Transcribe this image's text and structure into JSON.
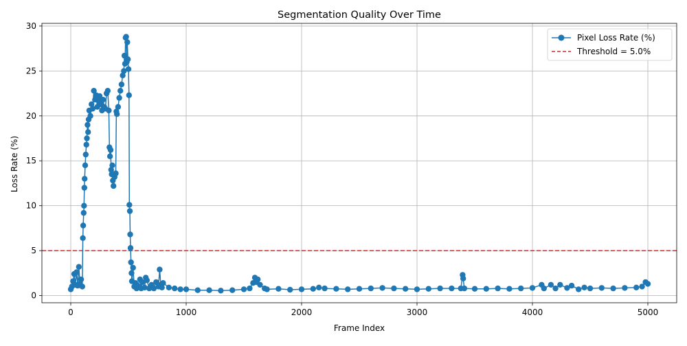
{
  "chart_data": {
    "type": "line",
    "title": "Segmentation Quality Over Time",
    "xlabel": "Frame Index",
    "ylabel": "Loss Rate (%)",
    "xlim": [
      -250,
      5250
    ],
    "ylim": [
      -0.8,
      30.3
    ],
    "x_ticks": [
      0,
      1000,
      2000,
      3000,
      4000,
      5000
    ],
    "y_ticks": [
      0,
      5,
      10,
      15,
      20,
      25,
      30
    ],
    "grid": true,
    "legend_position": "top-right",
    "threshold": {
      "value": 5.0,
      "label": "Threshold = 5.0%",
      "color": "#d62728"
    },
    "series": [
      {
        "name": "Pixel Loss Rate (%)",
        "color": "#1f77b4",
        "marker": "circle",
        "points": [
          [
            0,
            0.7
          ],
          [
            10,
            1.0
          ],
          [
            20,
            1.6
          ],
          [
            30,
            2.4
          ],
          [
            40,
            1.2
          ],
          [
            50,
            2.6
          ],
          [
            60,
            1.1
          ],
          [
            70,
            3.2
          ],
          [
            80,
            1.3
          ],
          [
            90,
            1.8
          ],
          [
            100,
            1.0
          ],
          [
            105,
            6.4
          ],
          [
            108,
            7.8
          ],
          [
            112,
            9.2
          ],
          [
            115,
            10.0
          ],
          [
            118,
            12.0
          ],
          [
            120,
            13.0
          ],
          [
            125,
            14.5
          ],
          [
            130,
            15.7
          ],
          [
            135,
            16.8
          ],
          [
            140,
            17.5
          ],
          [
            145,
            19.0
          ],
          [
            150,
            18.2
          ],
          [
            155,
            19.6
          ],
          [
            160,
            20.6
          ],
          [
            170,
            20.0
          ],
          [
            180,
            21.3
          ],
          [
            190,
            20.8
          ],
          [
            200,
            22.8
          ],
          [
            210,
            21.8
          ],
          [
            220,
            22.3
          ],
          [
            230,
            21.0
          ],
          [
            240,
            21.7
          ],
          [
            250,
            22.2
          ],
          [
            260,
            21.3
          ],
          [
            270,
            20.6
          ],
          [
            280,
            21.8
          ],
          [
            290,
            21.0
          ],
          [
            300,
            20.8
          ],
          [
            310,
            22.5
          ],
          [
            320,
            22.8
          ],
          [
            330,
            20.6
          ],
          [
            335,
            16.5
          ],
          [
            340,
            15.5
          ],
          [
            345,
            16.2
          ],
          [
            350,
            14.0
          ],
          [
            355,
            13.5
          ],
          [
            360,
            14.5
          ],
          [
            365,
            12.8
          ],
          [
            370,
            12.2
          ],
          [
            380,
            13.2
          ],
          [
            390,
            13.6
          ],
          [
            395,
            20.5
          ],
          [
            400,
            20.2
          ],
          [
            410,
            21.0
          ],
          [
            420,
            22.0
          ],
          [
            430,
            22.8
          ],
          [
            440,
            23.5
          ],
          [
            450,
            24.5
          ],
          [
            460,
            25.0
          ],
          [
            465,
            26.7
          ],
          [
            470,
            25.8
          ],
          [
            475,
            28.7
          ],
          [
            480,
            28.8
          ],
          [
            485,
            26.0
          ],
          [
            490,
            28.2
          ],
          [
            495,
            26.3
          ],
          [
            500,
            25.2
          ],
          [
            505,
            22.3
          ],
          [
            508,
            10.1
          ],
          [
            512,
            9.4
          ],
          [
            515,
            6.8
          ],
          [
            518,
            5.3
          ],
          [
            522,
            3.7
          ],
          [
            526,
            2.5
          ],
          [
            530,
            1.6
          ],
          [
            540,
            3.1
          ],
          [
            550,
            1.0
          ],
          [
            560,
            1.4
          ],
          [
            570,
            0.8
          ],
          [
            580,
            1.1
          ],
          [
            600,
            1.8
          ],
          [
            610,
            0.8
          ],
          [
            620,
            1.5
          ],
          [
            640,
            0.9
          ],
          [
            650,
            2.0
          ],
          [
            660,
            1.7
          ],
          [
            680,
            0.8
          ],
          [
            700,
            1.2
          ],
          [
            720,
            0.8
          ],
          [
            740,
            1.5
          ],
          [
            760,
            1.0
          ],
          [
            770,
            2.9
          ],
          [
            780,
            1.2
          ],
          [
            790,
            0.9
          ],
          [
            800,
            1.4
          ],
          [
            850,
            0.9
          ],
          [
            900,
            0.8
          ],
          [
            950,
            0.7
          ],
          [
            1000,
            0.7
          ],
          [
            1100,
            0.6
          ],
          [
            1200,
            0.6
          ],
          [
            1300,
            0.55
          ],
          [
            1400,
            0.6
          ],
          [
            1500,
            0.7
          ],
          [
            1550,
            0.8
          ],
          [
            1580,
            1.4
          ],
          [
            1595,
            2.0
          ],
          [
            1610,
            1.5
          ],
          [
            1620,
            1.8
          ],
          [
            1640,
            1.2
          ],
          [
            1680,
            0.8
          ],
          [
            1700,
            0.7
          ],
          [
            1800,
            0.75
          ],
          [
            1900,
            0.65
          ],
          [
            2000,
            0.7
          ],
          [
            2100,
            0.75
          ],
          [
            2150,
            0.9
          ],
          [
            2200,
            0.8
          ],
          [
            2300,
            0.75
          ],
          [
            2400,
            0.7
          ],
          [
            2500,
            0.75
          ],
          [
            2600,
            0.8
          ],
          [
            2700,
            0.85
          ],
          [
            2800,
            0.8
          ],
          [
            2900,
            0.75
          ],
          [
            3000,
            0.7
          ],
          [
            3100,
            0.75
          ],
          [
            3200,
            0.8
          ],
          [
            3300,
            0.8
          ],
          [
            3380,
            0.8
          ],
          [
            3395,
            2.3
          ],
          [
            3400,
            1.9
          ],
          [
            3410,
            0.8
          ],
          [
            3500,
            0.75
          ],
          [
            3600,
            0.75
          ],
          [
            3700,
            0.8
          ],
          [
            3800,
            0.75
          ],
          [
            3900,
            0.8
          ],
          [
            4000,
            0.85
          ],
          [
            4080,
            1.2
          ],
          [
            4100,
            0.8
          ],
          [
            4160,
            1.2
          ],
          [
            4200,
            0.8
          ],
          [
            4240,
            1.2
          ],
          [
            4300,
            0.85
          ],
          [
            4340,
            1.1
          ],
          [
            4400,
            0.7
          ],
          [
            4450,
            0.9
          ],
          [
            4500,
            0.8
          ],
          [
            4600,
            0.85
          ],
          [
            4700,
            0.8
          ],
          [
            4800,
            0.85
          ],
          [
            4900,
            0.9
          ],
          [
            4950,
            1.0
          ],
          [
            4980,
            1.5
          ],
          [
            5000,
            1.3
          ]
        ]
      }
    ]
  }
}
